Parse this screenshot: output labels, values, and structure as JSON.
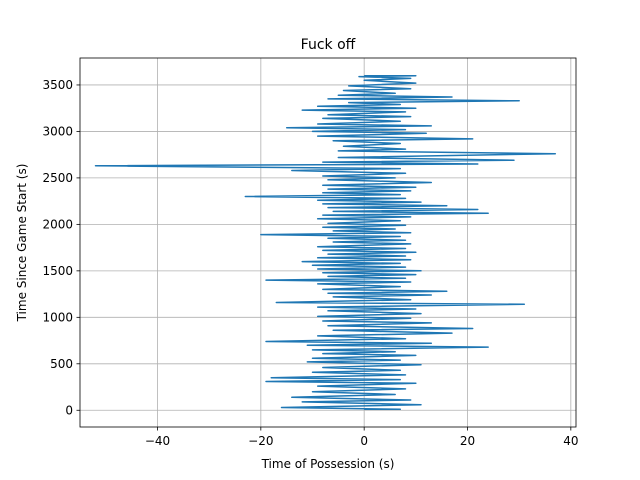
{
  "chart_data": {
    "type": "line",
    "title": "Fuck off",
    "xlabel": "Time of Possession (s)",
    "ylabel": "Time Since Game Start (s)",
    "xlim": [
      -55,
      41
    ],
    "ylim": [
      -180,
      3790
    ],
    "xticks": [
      -40,
      -20,
      0,
      20,
      40
    ],
    "yticks": [
      0,
      500,
      1000,
      1500,
      2000,
      2500,
      3000,
      3500
    ],
    "grid": true,
    "legend": "none",
    "series": [
      {
        "color": "#1f77b4",
        "points": [
          [
            0,
            10
          ],
          [
            7,
            10
          ],
          [
            -16,
            30
          ],
          [
            11,
            60
          ],
          [
            -12,
            90
          ],
          [
            9,
            110
          ],
          [
            -14,
            140
          ],
          [
            6,
            170
          ],
          [
            -10,
            200
          ],
          [
            8,
            230
          ],
          [
            -9,
            260
          ],
          [
            10,
            290
          ],
          [
            -19,
            310
          ],
          [
            7,
            330
          ],
          [
            -18,
            350
          ],
          [
            8,
            380
          ],
          [
            -10,
            410
          ],
          [
            7,
            430
          ],
          [
            -8,
            460
          ],
          [
            11,
            490
          ],
          [
            -11,
            520
          ],
          [
            7,
            540
          ],
          [
            -10,
            560
          ],
          [
            10,
            590
          ],
          [
            -8,
            610
          ],
          [
            6,
            630
          ],
          [
            -10,
            650
          ],
          [
            24,
            680
          ],
          [
            -11,
            700
          ],
          [
            13,
            720
          ],
          [
            -19,
            740
          ],
          [
            8,
            770
          ],
          [
            -9,
            800
          ],
          [
            17,
            830
          ],
          [
            -6,
            860
          ],
          [
            21,
            880
          ],
          [
            -7,
            910
          ],
          [
            13,
            940
          ],
          [
            -8,
            960
          ],
          [
            9,
            990
          ],
          [
            -9,
            1010
          ],
          [
            11,
            1040
          ],
          [
            -7,
            1070
          ],
          [
            10,
            1090
          ],
          [
            -9,
            1110
          ],
          [
            31,
            1140
          ],
          [
            -17,
            1160
          ],
          [
            9,
            1190
          ],
          [
            -6,
            1220
          ],
          [
            13,
            1240
          ],
          [
            -7,
            1260
          ],
          [
            16,
            1280
          ],
          [
            -8,
            1300
          ],
          [
            7,
            1330
          ],
          [
            -9,
            1360
          ],
          [
            9,
            1380
          ],
          [
            -19,
            1400
          ],
          [
            8,
            1420
          ],
          [
            -7,
            1440
          ],
          [
            10,
            1460
          ],
          [
            -8,
            1480
          ],
          [
            11,
            1500
          ],
          [
            -9,
            1520
          ],
          [
            8,
            1540
          ],
          [
            -10,
            1560
          ],
          [
            7,
            1580
          ],
          [
            -12,
            1600
          ],
          [
            9,
            1620
          ],
          [
            -9,
            1640
          ],
          [
            8,
            1660
          ],
          [
            -7,
            1680
          ],
          [
            10,
            1700
          ],
          [
            -8,
            1720
          ],
          [
            8,
            1740
          ],
          [
            -9,
            1760
          ],
          [
            9,
            1790
          ],
          [
            -6,
            1810
          ],
          [
            8,
            1830
          ],
          [
            -7,
            1850
          ],
          [
            7,
            1870
          ],
          [
            -20,
            1890
          ],
          [
            9,
            1910
          ],
          [
            -6,
            1930
          ],
          [
            6,
            1950
          ],
          [
            -8,
            1970
          ],
          [
            8,
            1990
          ],
          [
            -7,
            2010
          ],
          [
            7,
            2040
          ],
          [
            -9,
            2060
          ],
          [
            9,
            2080
          ],
          [
            -8,
            2100
          ],
          [
            24,
            2120
          ],
          [
            -6,
            2140
          ],
          [
            22,
            2160
          ],
          [
            -7,
            2180
          ],
          [
            16,
            2200
          ],
          [
            -8,
            2220
          ],
          [
            11,
            2240
          ],
          [
            -9,
            2260
          ],
          [
            8,
            2280
          ],
          [
            -23,
            2300
          ],
          [
            7,
            2320
          ],
          [
            -8,
            2340
          ],
          [
            9,
            2360
          ],
          [
            -7,
            2380
          ],
          [
            10,
            2400
          ],
          [
            -8,
            2420
          ],
          [
            13,
            2450
          ],
          [
            -7,
            2480
          ],
          [
            6,
            2500
          ],
          [
            -8,
            2520
          ],
          [
            8,
            2550
          ],
          [
            -14,
            2580
          ],
          [
            7,
            2600
          ],
          [
            -52,
            2630
          ],
          [
            22,
            2650
          ],
          [
            -8,
            2670
          ],
          [
            29,
            2690
          ],
          [
            -5,
            2720
          ],
          [
            37,
            2760
          ],
          [
            -5,
            2790
          ],
          [
            8,
            2810
          ],
          [
            -4,
            2840
          ],
          [
            7,
            2870
          ],
          [
            -6,
            2900
          ],
          [
            21,
            2920
          ],
          [
            -9,
            2950
          ],
          [
            12,
            2980
          ],
          [
            -10,
            3000
          ],
          [
            8,
            3020
          ],
          [
            -15,
            3040
          ],
          [
            13,
            3060
          ],
          [
            -9,
            3080
          ],
          [
            7,
            3110
          ],
          [
            -8,
            3140
          ],
          [
            9,
            3160
          ],
          [
            -7,
            3180
          ],
          [
            8,
            3210
          ],
          [
            -12,
            3230
          ],
          [
            10,
            3250
          ],
          [
            -9,
            3270
          ],
          [
            7,
            3290
          ],
          [
            -3,
            3310
          ],
          [
            30,
            3330
          ],
          [
            -7,
            3350
          ],
          [
            17,
            3370
          ],
          [
            -5,
            3390
          ],
          [
            6,
            3410
          ],
          [
            -4,
            3440
          ],
          [
            9,
            3460
          ],
          [
            -3,
            3490
          ],
          [
            10,
            3520
          ],
          [
            0,
            3550
          ],
          [
            9,
            3570
          ],
          [
            -1,
            3590
          ],
          [
            10,
            3600
          ],
          [
            0,
            3600
          ]
        ]
      }
    ]
  }
}
